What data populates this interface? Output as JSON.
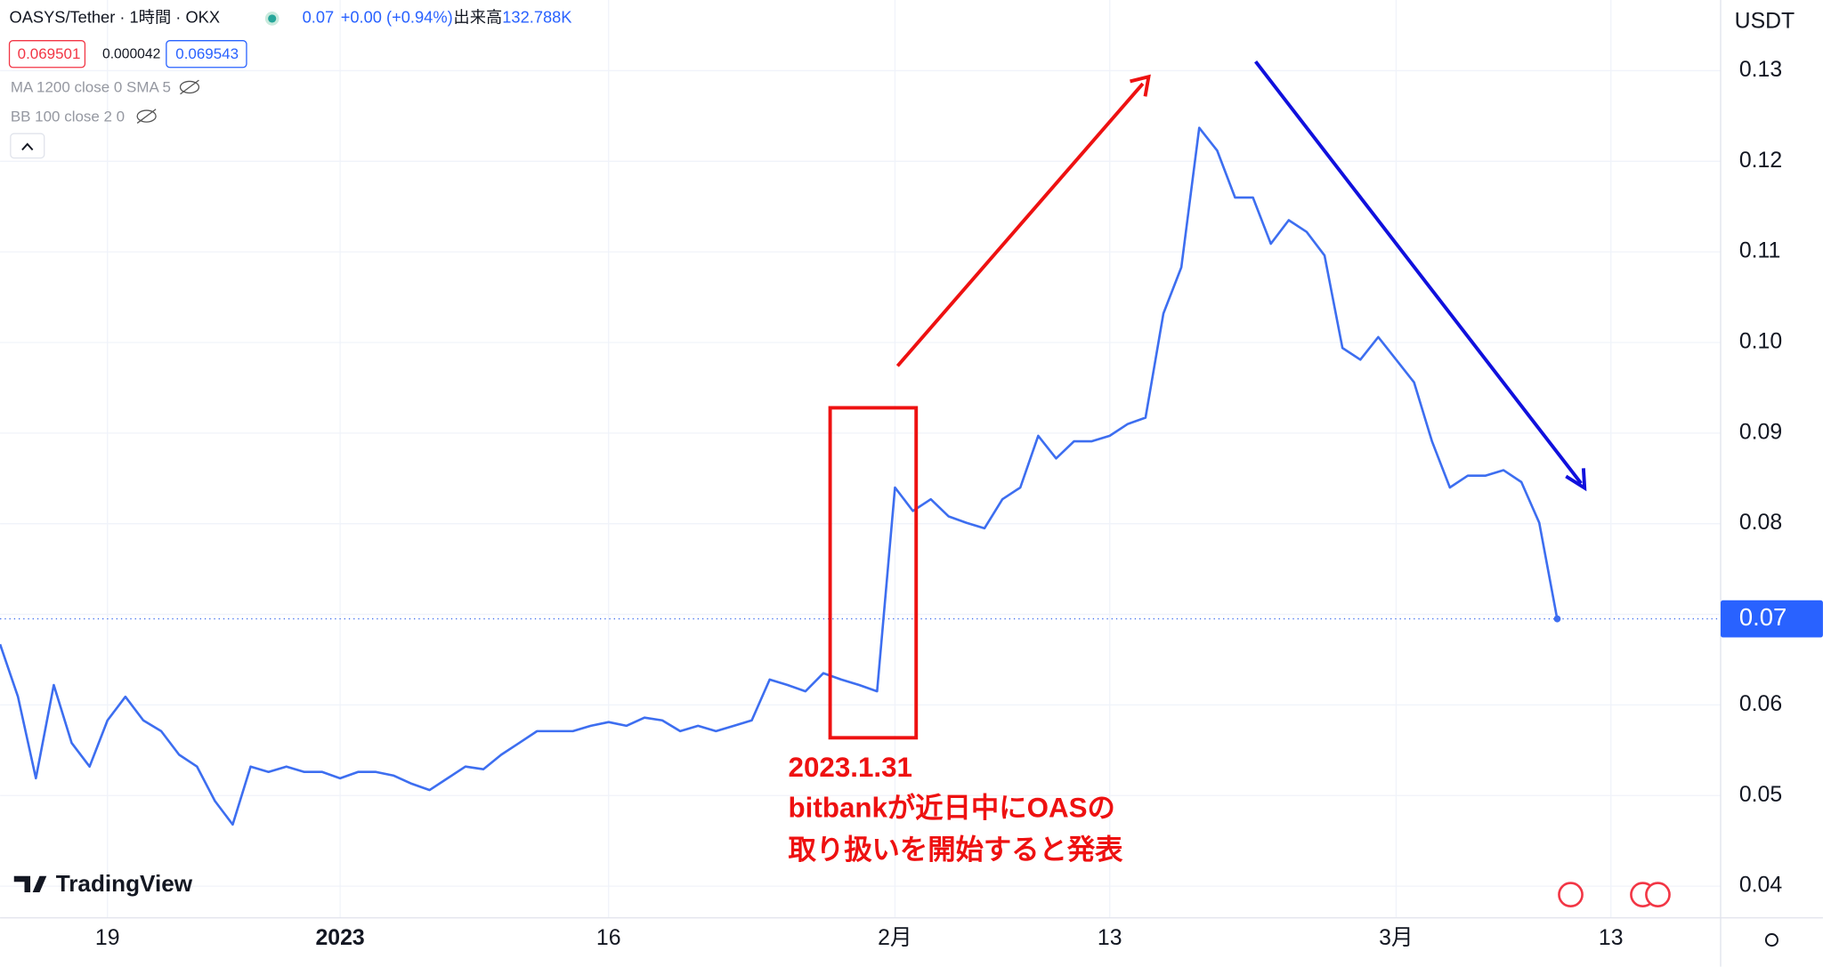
{
  "header": {
    "symbol": "OASYS/Tether · 1時間 · OKX",
    "price": "0.07",
    "change": "+0.00 (+0.94%)",
    "volume_label": "出来高",
    "volume": "132.788K",
    "bid": "0.069501",
    "spread": "0.000042",
    "ask": "0.069543",
    "indicators": [
      "MA 1200 close 0 SMA 5",
      "BB 100 close 2 0"
    ],
    "logo": "TradingView"
  },
  "chart_data": {
    "type": "line",
    "color": "#3d6ef0",
    "currency": "USDT",
    "values": [
      0.0667,
      0.0609,
      0.0519,
      0.0622,
      0.0558,
      0.0532,
      0.0583,
      0.0609,
      0.0583,
      0.0571,
      0.0545,
      0.0532,
      0.0494,
      0.0468,
      0.0532,
      0.0526,
      0.0532,
      0.0526,
      0.0526,
      0.0519,
      0.0526,
      0.0526,
      0.0522,
      0.0513,
      0.0506,
      0.0519,
      0.0532,
      0.0529,
      0.0545,
      0.0558,
      0.0571,
      0.0571,
      0.0571,
      0.0577,
      0.0581,
      0.0577,
      0.0586,
      0.0583,
      0.0571,
      0.0577,
      0.0571,
      0.0577,
      0.0583,
      0.0628,
      0.0622,
      0.0615,
      0.0635,
      0.0628,
      0.0622,
      0.0615,
      0.084,
      0.0814,
      0.0827,
      0.0808,
      0.0801,
      0.0795,
      0.0827,
      0.084,
      0.0897,
      0.0872,
      0.0891,
      0.0891,
      0.0897,
      0.091,
      0.0917,
      0.1032,
      0.1083,
      0.1237,
      0.1212,
      0.116,
      0.116,
      0.1109,
      0.1135,
      0.1122,
      0.1096,
      0.0994,
      0.0981,
      0.1006,
      0.0981,
      0.0956,
      0.0891,
      0.084,
      0.0853,
      0.0853,
      0.0859,
      0.0846,
      0.0801,
      0.0695
    ],
    "xlim": [
      0,
      96
    ],
    "xticks": [
      {
        "value": 6,
        "label": "19"
      },
      {
        "value": 19,
        "label": "2023"
      },
      {
        "value": 34,
        "label": "16"
      },
      {
        "value": 50,
        "label": "2月"
      },
      {
        "value": 62,
        "label": "13"
      },
      {
        "value": 78,
        "label": "3月"
      },
      {
        "value": 90,
        "label": "13"
      }
    ],
    "ylim": [
      0.0365,
      0.1378
    ],
    "yticks": [
      0.04,
      0.05,
      0.06,
      0.07,
      0.08,
      0.09,
      {
        "value": 0.1,
        "label": "0.10"
      },
      0.11,
      0.12,
      0.13
    ],
    "last_price": {
      "value": 0.0695,
      "label": "0.07"
    },
    "grid": true,
    "annotations": [
      "2023.1.31",
      "bitbankが近日中にOASの",
      "取り扱いを開始すると発表"
    ]
  }
}
